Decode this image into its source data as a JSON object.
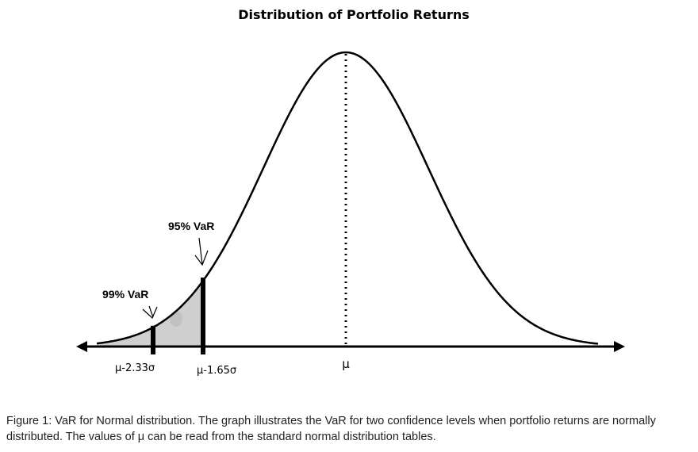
{
  "figure": {
    "title": "Distribution of Portfolio Returns",
    "var95_label": "95% VaR",
    "var99_label": "99% VaR",
    "tick_99": "μ-2.33σ",
    "tick_95": "μ-1.65σ",
    "tick_mu": "μ"
  },
  "caption": "Figure 1: VaR for Normal distribution. The graph illustrates the VaR for two confidence levels when portfolio returns are normally distributed. The values of μ can be read from the standard normal distribution tables.",
  "colors": {
    "tail_fill": "#cfcfcf",
    "curve": "#000000"
  }
}
